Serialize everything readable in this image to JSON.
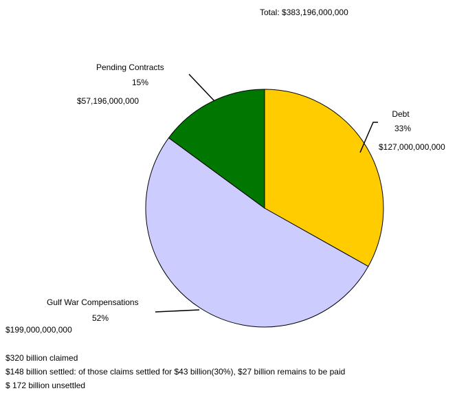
{
  "chart_data": {
    "type": "pie",
    "title": "Total: $383,196,000,000",
    "slices": [
      {
        "label": "Debt",
        "percent_label": "33%",
        "value_label": "$127,000,000,000",
        "value": 127000000000,
        "color": "#FFCC00"
      },
      {
        "label": "Gulf War Compensations",
        "percent_label": "52%",
        "value_label": "$199,000,000,000",
        "value": 199000000000,
        "color": "#CCCCFF"
      },
      {
        "label": "Pending Contracts",
        "percent_label": "15%",
        "value_label": "$57,196,000,000",
        "value": 57196000000,
        "color": "#007700"
      }
    ]
  },
  "notes": [
    "$320 billion claimed",
    "$148 billion settled: of those claims settled for $43 billion(30%), $27 billion remains to be paid",
    "$ 172 billion unsettled"
  ]
}
